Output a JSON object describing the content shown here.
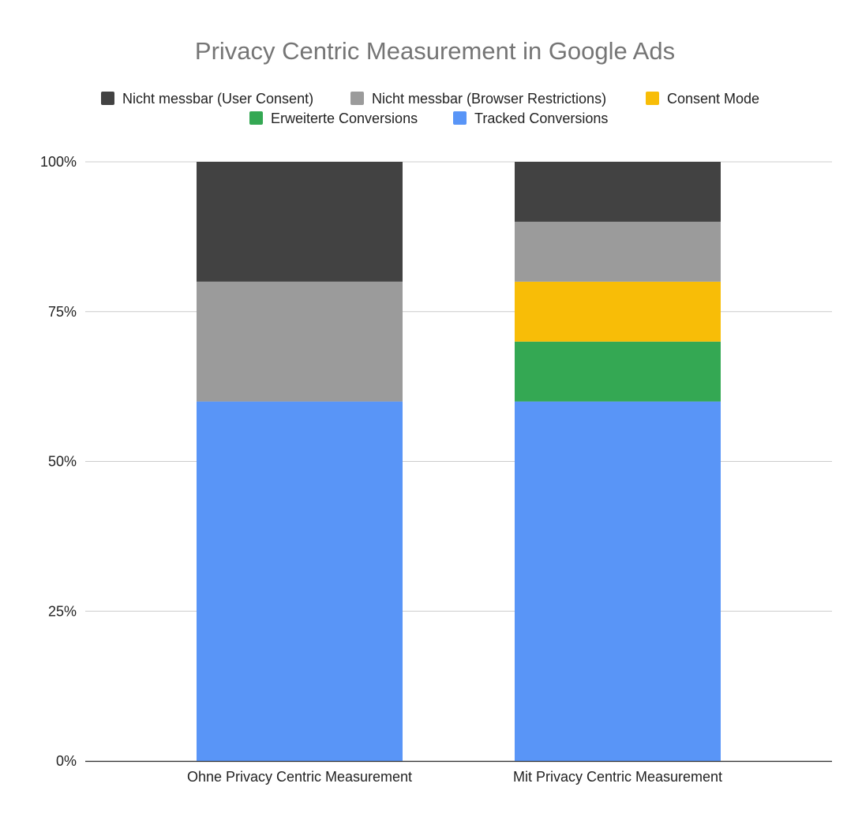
{
  "chart_data": {
    "type": "bar",
    "stacked": true,
    "percent": true,
    "title": "Privacy Centric Measurement in Google Ads",
    "xlabel": "",
    "ylabel": "",
    "ylim": [
      0,
      100
    ],
    "y_ticks": [
      "0%",
      "25%",
      "50%",
      "75%",
      "100%"
    ],
    "grid": true,
    "legend_position": "top",
    "categories": [
      "Ohne Privacy Centric Measurement",
      "Mit Privacy Centric Measurement"
    ],
    "series": [
      {
        "name": "Tracked Conversions",
        "color": "#5995f7",
        "values": [
          60,
          60
        ]
      },
      {
        "name": "Erweiterte Conversions",
        "color": "#34a853",
        "values": [
          0,
          10
        ]
      },
      {
        "name": "Consent Mode",
        "color": "#f8bd07",
        "values": [
          0,
          10
        ]
      },
      {
        "name": "Nicht messbar (Browser Restrictions)",
        "color": "#9b9b9b",
        "values": [
          20,
          10
        ]
      },
      {
        "name": "Nicht messbar (User Consent)",
        "color": "#424242",
        "values": [
          20,
          10
        ]
      }
    ],
    "legend_order": [
      "Nicht messbar (User Consent)",
      "Nicht messbar (Browser Restrictions)",
      "Consent Mode",
      "Erweiterte Conversions",
      "Tracked Conversions"
    ]
  }
}
